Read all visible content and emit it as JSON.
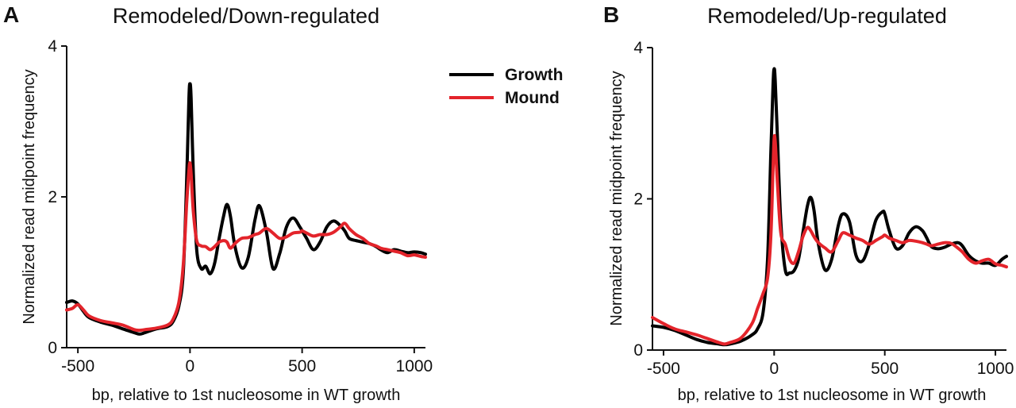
{
  "legend": {
    "entries": [
      {
        "name": "Growth",
        "color": "#000000"
      },
      {
        "name": "Mound",
        "color": "#e3242b"
      }
    ]
  },
  "chart_data": [
    {
      "type": "line",
      "panel": "A",
      "title": "Remodeled/Down-regulated",
      "xlabel": "bp, relative to 1st nucleosome in WT growth",
      "ylabel": "Normalized read midpoint frequency",
      "xlim": [
        -550,
        1050
      ],
      "ylim": [
        0,
        4
      ],
      "xticks": [
        -500,
        0,
        500,
        1000
      ],
      "yticks": [
        0,
        2,
        4
      ],
      "xtick_labels": [
        "-500",
        "0",
        "500",
        "1000"
      ],
      "ytick_labels": [
        "0",
        "2",
        "4"
      ],
      "series": [
        {
          "name": "Growth",
          "color": "#000000",
          "x": [
            -550,
            -525,
            -500,
            -475,
            -450,
            -400,
            -350,
            -300,
            -250,
            -225,
            -200,
            -150,
            -100,
            -75,
            -50,
            -30,
            -15,
            -5,
            0,
            5,
            15,
            30,
            50,
            70,
            90,
            110,
            130,
            150,
            165,
            180,
            200,
            230,
            260,
            290,
            310,
            340,
            370,
            400,
            430,
            460,
            490,
            500,
            520,
            550,
            580,
            610,
            640,
            670,
            690,
            710,
            740,
            770,
            800,
            830,
            850,
            880,
            910,
            940,
            970,
            1000,
            1030,
            1050
          ],
          "y": [
            0.6,
            0.62,
            0.58,
            0.48,
            0.4,
            0.34,
            0.3,
            0.25,
            0.2,
            0.18,
            0.2,
            0.25,
            0.28,
            0.35,
            0.55,
            1.0,
            2.2,
            3.3,
            3.5,
            3.3,
            2.3,
            1.3,
            1.05,
            1.08,
            0.98,
            1.12,
            1.45,
            1.75,
            1.9,
            1.75,
            1.35,
            1.06,
            1.2,
            1.7,
            1.88,
            1.55,
            1.05,
            1.25,
            1.6,
            1.72,
            1.6,
            1.55,
            1.45,
            1.3,
            1.4,
            1.6,
            1.68,
            1.62,
            1.55,
            1.45,
            1.42,
            1.4,
            1.38,
            1.34,
            1.3,
            1.26,
            1.3,
            1.28,
            1.26,
            1.27,
            1.26,
            1.24
          ]
        },
        {
          "name": "Mound",
          "color": "#e3242b",
          "x": [
            -550,
            -525,
            -500,
            -475,
            -450,
            -400,
            -350,
            -300,
            -250,
            -225,
            -200,
            -150,
            -100,
            -75,
            -50,
            -30,
            -15,
            -5,
            0,
            5,
            15,
            30,
            50,
            70,
            90,
            110,
            130,
            150,
            165,
            180,
            200,
            230,
            260,
            290,
            310,
            340,
            370,
            400,
            430,
            460,
            490,
            500,
            520,
            550,
            580,
            610,
            640,
            670,
            690,
            710,
            740,
            770,
            800,
            830,
            850,
            880,
            910,
            940,
            970,
            1000,
            1030,
            1050
          ],
          "y": [
            0.5,
            0.52,
            0.57,
            0.5,
            0.42,
            0.36,
            0.33,
            0.3,
            0.24,
            0.23,
            0.24,
            0.26,
            0.3,
            0.38,
            0.6,
            1.1,
            1.9,
            2.35,
            2.45,
            2.3,
            1.8,
            1.42,
            1.35,
            1.34,
            1.3,
            1.34,
            1.4,
            1.42,
            1.4,
            1.32,
            1.38,
            1.45,
            1.46,
            1.5,
            1.52,
            1.58,
            1.52,
            1.45,
            1.47,
            1.52,
            1.53,
            1.55,
            1.52,
            1.48,
            1.5,
            1.5,
            1.53,
            1.6,
            1.65,
            1.58,
            1.5,
            1.45,
            1.38,
            1.35,
            1.32,
            1.3,
            1.28,
            1.26,
            1.22,
            1.23,
            1.21,
            1.2
          ]
        }
      ]
    },
    {
      "type": "line",
      "panel": "B",
      "title": "Remodeled/Up-regulated",
      "xlabel": "bp, relative to 1st nucleosome in WT growth",
      "ylabel": "Normalized read midpoint frequency",
      "xlim": [
        -550,
        1050
      ],
      "ylim": [
        0,
        4
      ],
      "xticks": [
        -500,
        0,
        500,
        1000
      ],
      "yticks": [
        0,
        2,
        4
      ],
      "xtick_labels": [
        "-500",
        "0",
        "500",
        "1000"
      ],
      "ytick_labels": [
        "0",
        "2",
        "4"
      ],
      "series": [
        {
          "name": "Growth",
          "color": "#000000",
          "x": [
            -550,
            -500,
            -450,
            -400,
            -350,
            -300,
            -250,
            -225,
            -200,
            -150,
            -100,
            -75,
            -50,
            -30,
            -15,
            -5,
            0,
            5,
            15,
            30,
            50,
            70,
            90,
            110,
            130,
            150,
            165,
            180,
            200,
            230,
            260,
            290,
            310,
            340,
            370,
            400,
            430,
            460,
            490,
            500,
            520,
            550,
            580,
            610,
            640,
            670,
            690,
            710,
            740,
            770,
            800,
            830,
            850,
            880,
            910,
            940,
            970,
            1000,
            1030,
            1050
          ],
          "y": [
            0.32,
            0.3,
            0.26,
            0.2,
            0.14,
            0.1,
            0.08,
            0.07,
            0.08,
            0.12,
            0.2,
            0.28,
            0.5,
            1.2,
            2.6,
            3.5,
            3.72,
            3.55,
            2.8,
            1.7,
            1.06,
            1.02,
            1.05,
            1.2,
            1.55,
            1.9,
            2.02,
            1.85,
            1.4,
            1.06,
            1.2,
            1.65,
            1.8,
            1.7,
            1.25,
            1.18,
            1.4,
            1.72,
            1.83,
            1.8,
            1.58,
            1.35,
            1.38,
            1.55,
            1.63,
            1.58,
            1.48,
            1.37,
            1.34,
            1.36,
            1.4,
            1.42,
            1.38,
            1.25,
            1.18,
            1.15,
            1.15,
            1.12,
            1.2,
            1.24
          ]
        },
        {
          "name": "Mound",
          "color": "#e3242b",
          "x": [
            -550,
            -500,
            -450,
            -400,
            -350,
            -300,
            -250,
            -225,
            -200,
            -150,
            -100,
            -75,
            -50,
            -30,
            -15,
            -5,
            0,
            5,
            15,
            30,
            50,
            70,
            90,
            110,
            130,
            150,
            165,
            180,
            200,
            230,
            260,
            290,
            310,
            340,
            370,
            400,
            430,
            460,
            490,
            500,
            520,
            550,
            580,
            610,
            640,
            670,
            690,
            710,
            740,
            770,
            800,
            830,
            850,
            880,
            910,
            940,
            970,
            1000,
            1030,
            1050
          ],
          "y": [
            0.43,
            0.35,
            0.28,
            0.24,
            0.2,
            0.15,
            0.1,
            0.08,
            0.1,
            0.16,
            0.35,
            0.55,
            0.75,
            0.95,
            1.5,
            2.4,
            2.8,
            2.75,
            2.2,
            1.55,
            1.4,
            1.2,
            1.15,
            1.3,
            1.5,
            1.62,
            1.58,
            1.5,
            1.42,
            1.35,
            1.3,
            1.45,
            1.55,
            1.52,
            1.48,
            1.45,
            1.4,
            1.45,
            1.5,
            1.52,
            1.48,
            1.45,
            1.42,
            1.45,
            1.44,
            1.42,
            1.4,
            1.38,
            1.4,
            1.42,
            1.41,
            1.35,
            1.3,
            1.2,
            1.15,
            1.18,
            1.2,
            1.14,
            1.12,
            1.1
          ]
        }
      ]
    }
  ]
}
